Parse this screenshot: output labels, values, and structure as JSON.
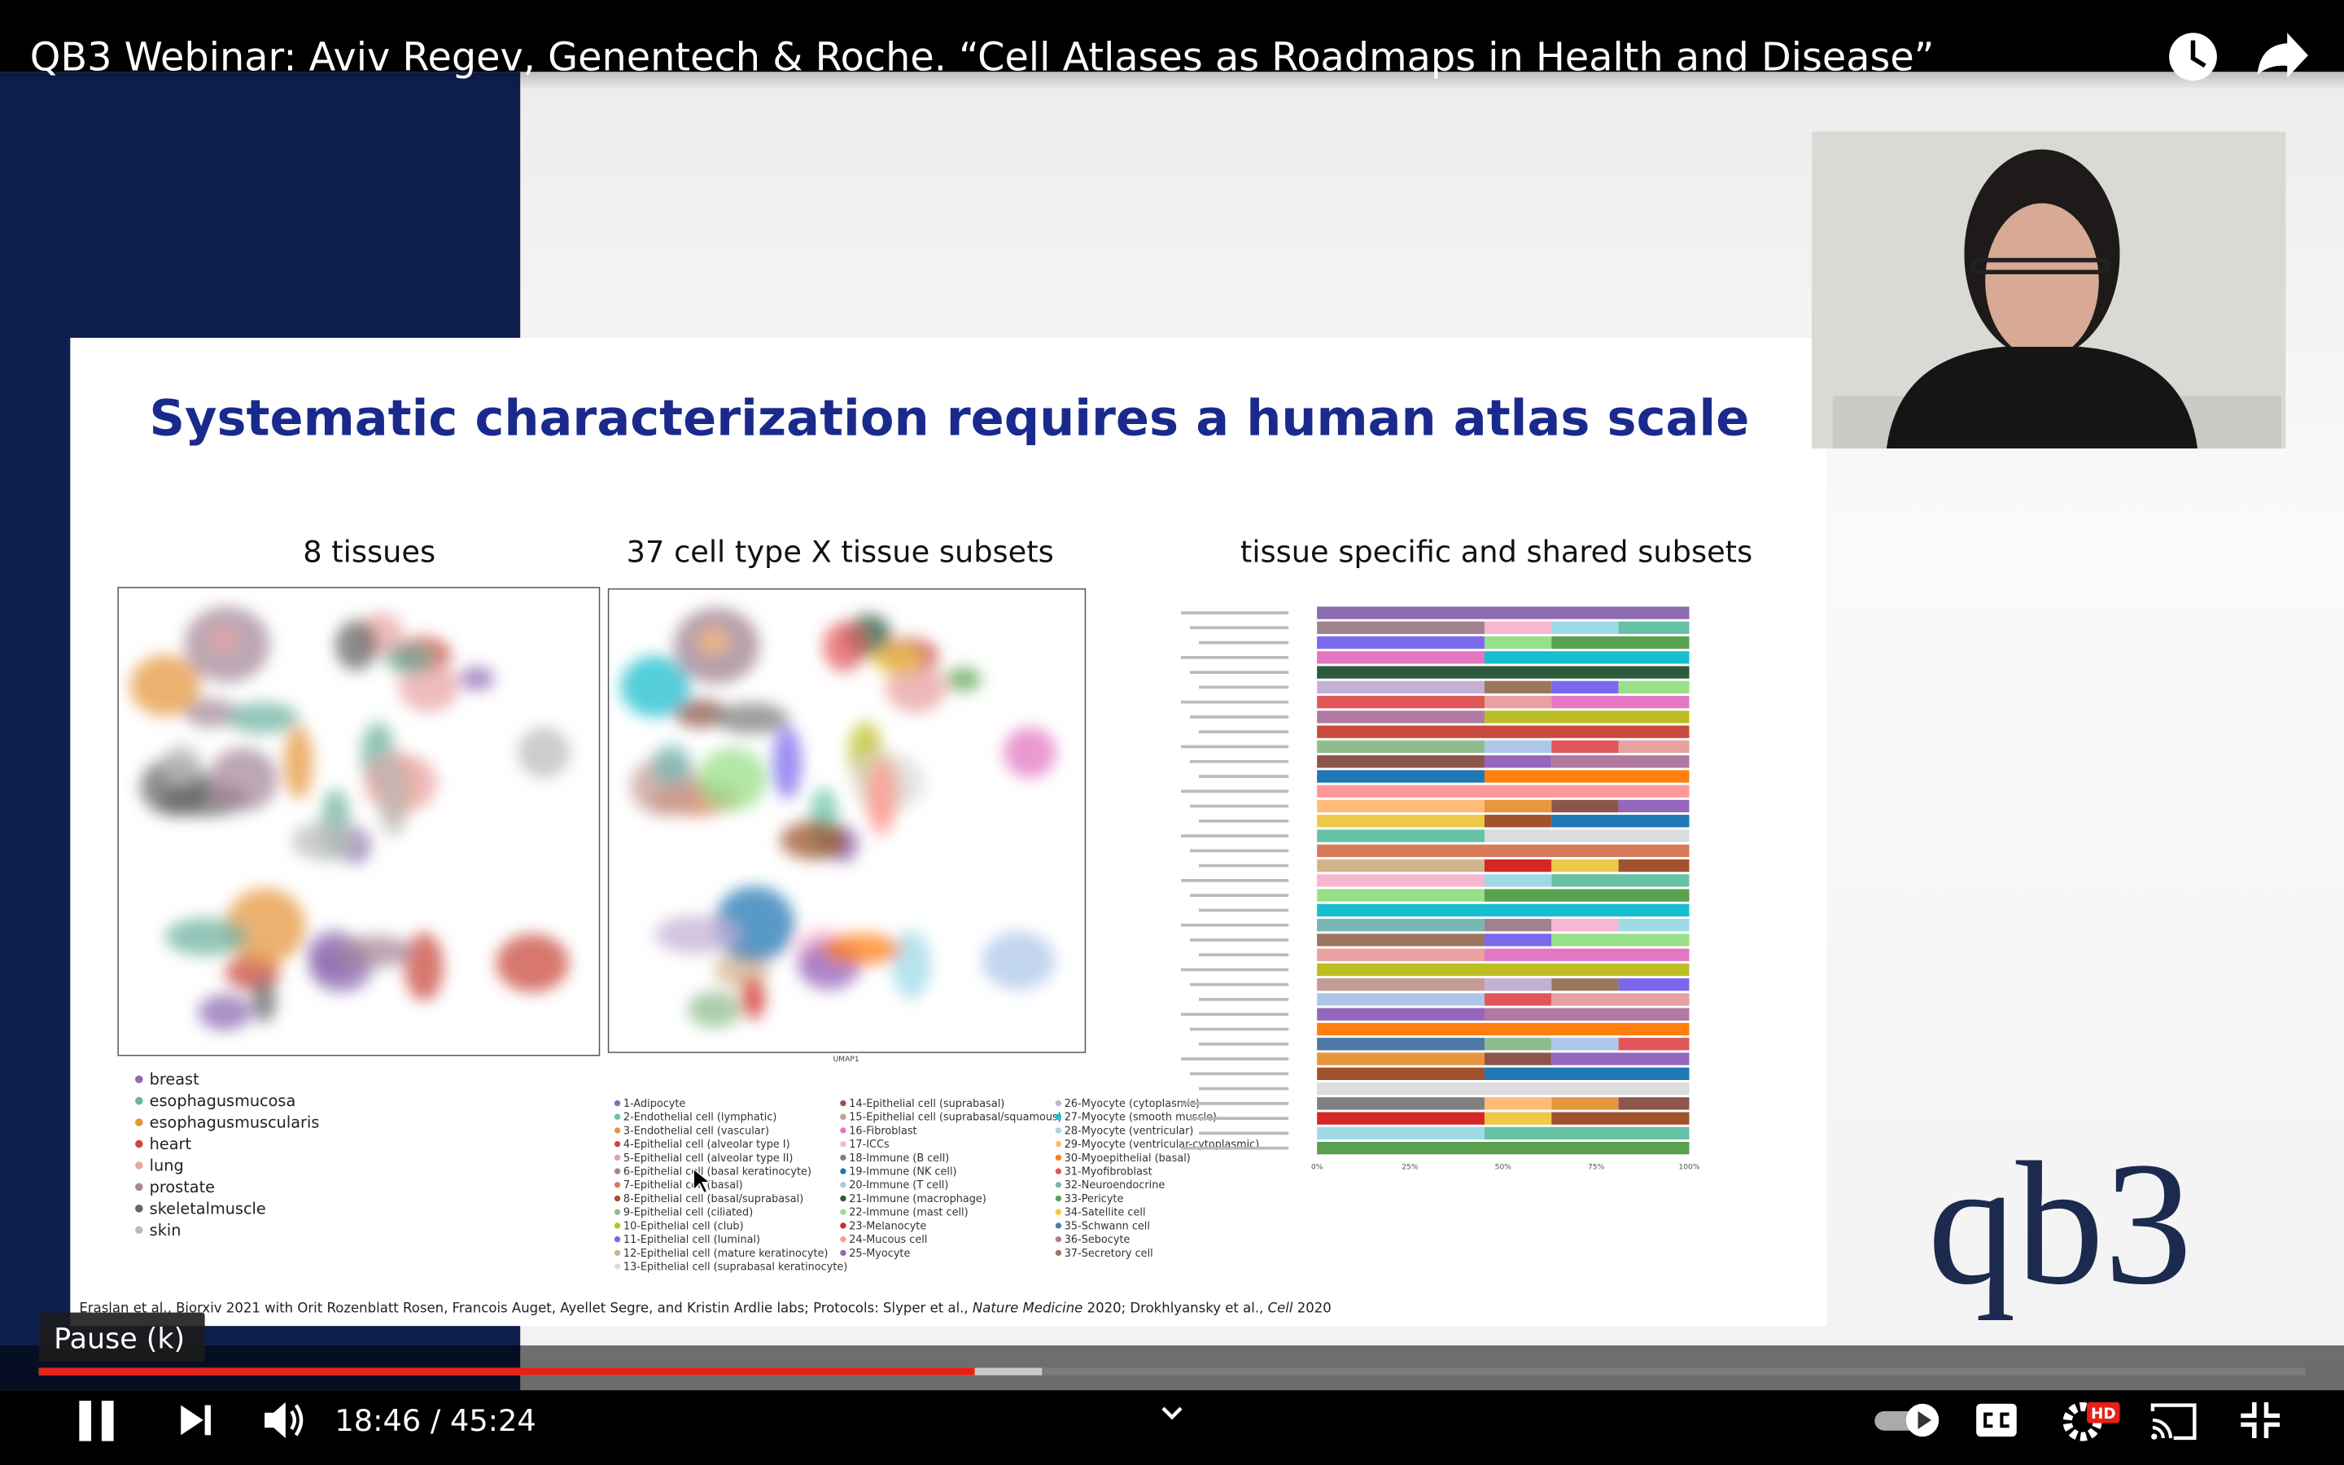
{
  "player": {
    "video_title": "QB3 Webinar: Aviv Regev, Genentech & Roche. “Cell Atlases as Roadmaps in Health and Disease”",
    "tooltip": "Pause (k)",
    "time": "18:46 / 45:24",
    "quality_badge": "HD"
  },
  "slide": {
    "title": "Systematic characterization requires a human atlas scale",
    "panels": [
      "8 tissues",
      "37 cell type X tissue subsets",
      "tissue specific and shared subsets"
    ],
    "umap_axis": "UMAP1",
    "tissues": [
      {
        "name": "breast",
        "color": "#8c6bb1"
      },
      {
        "name": "esophagusmucosa",
        "color": "#6fb2a0"
      },
      {
        "name": "esophagusmuscularis",
        "color": "#e6973d"
      },
      {
        "name": "heart",
        "color": "#c94a3c"
      },
      {
        "name": "lung",
        "color": "#e8a5a5"
      },
      {
        "name": "prostate",
        "color": "#a58a9a"
      },
      {
        "name": "skeletalmuscle",
        "color": "#666666"
      },
      {
        "name": "skin",
        "color": "#bbbbbb"
      }
    ],
    "cell_types": [
      {
        "name": "1-Adipocyte",
        "color": "#8c6bb1"
      },
      {
        "name": "2-Endothelial cell (lymphatic)",
        "color": "#66c2a5"
      },
      {
        "name": "3-Endothelial cell (vascular)",
        "color": "#e6973d"
      },
      {
        "name": "4-Epithelial cell (alveolar type I)",
        "color": "#c94a3c"
      },
      {
        "name": "5-Epithelial cell (alveolar type II)",
        "color": "#e8a0a0"
      },
      {
        "name": "6-Epithelial cell (basal keratinocyte)",
        "color": "#a0828f"
      },
      {
        "name": "7-Epithelial cell (basal)",
        "color": "#d77a5a"
      },
      {
        "name": "8-Epithelial cell (basal/suprabasal)",
        "color": "#a0522d"
      },
      {
        "name": "9-Epithelial cell (ciliated)",
        "color": "#8fbc8f"
      },
      {
        "name": "10-Epithelial cell (club)",
        "color": "#bcbd22"
      },
      {
        "name": "11-Epithelial cell (luminal)",
        "color": "#7b68ee"
      },
      {
        "name": "12-Epithelial cell (mature keratinocyte)",
        "color": "#d2b48c"
      },
      {
        "name": "13-Epithelial cell (suprabasal keratinocyte)",
        "color": "#dcdcdc"
      },
      {
        "name": "14-Epithelial cell (suprabasal)",
        "color": "#8c564b"
      },
      {
        "name": "15-Epithelial cell (suprabasal/squamous)",
        "color": "#c49c94"
      },
      {
        "name": "16-Fibroblast",
        "color": "#e377c2"
      },
      {
        "name": "17-ICCs",
        "color": "#f7b6d2"
      },
      {
        "name": "18-Immune (B cell)",
        "color": "#7f7f7f"
      },
      {
        "name": "19-Immune (NK cell)",
        "color": "#1f77b4"
      },
      {
        "name": "20-Immune (T cell)",
        "color": "#aec7e8"
      },
      {
        "name": "21-Immune (macrophage)",
        "color": "#2d5a3d"
      },
      {
        "name": "22-Immune (mast cell)",
        "color": "#98df8a"
      },
      {
        "name": "23-Melanocyte",
        "color": "#d62728"
      },
      {
        "name": "24-Mucous cell",
        "color": "#ff9896"
      },
      {
        "name": "25-Myocyte",
        "color": "#9467bd"
      },
      {
        "name": "26-Myocyte (cytoplasmic)",
        "color": "#c5b0d5"
      },
      {
        "name": "27-Myocyte (smooth muscle)",
        "color": "#17becf"
      },
      {
        "name": "28-Myocyte (ventricular)",
        "color": "#9edae5"
      },
      {
        "name": "29-Myocyte (ventricular-cytoplasmic)",
        "color": "#ffbb78"
      },
      {
        "name": "30-Myoepithelial (basal)",
        "color": "#ff7f0e"
      },
      {
        "name": "31-Myofibroblast",
        "color": "#e15759"
      },
      {
        "name": "32-Neuroendocrine",
        "color": "#76b7b2"
      },
      {
        "name": "33-Pericyte",
        "color": "#59a14f"
      },
      {
        "name": "34-Satellite cell",
        "color": "#edc948"
      },
      {
        "name": "35-Schwann cell",
        "color": "#4e79a7"
      },
      {
        "name": "36-Sebocyte",
        "color": "#b07aa1"
      },
      {
        "name": "37-Secretory cell",
        "color": "#9c755f"
      }
    ],
    "bar_axis_ticks": [
      "0%",
      "25%",
      "50%",
      "75%",
      "100%"
    ],
    "citation": [
      "Eraslan et al., Biorxiv 2021 with Orit Rozenblatt Rosen, Francois Auget, Ayellet Segre, and Kristin Ardlie labs; Protocols: Slyper et al., ",
      "Nature Medicine",
      " 2020; Drokhlyansky et al., ",
      "Cell",
      " 2020"
    ],
    "logo": "qb3"
  }
}
